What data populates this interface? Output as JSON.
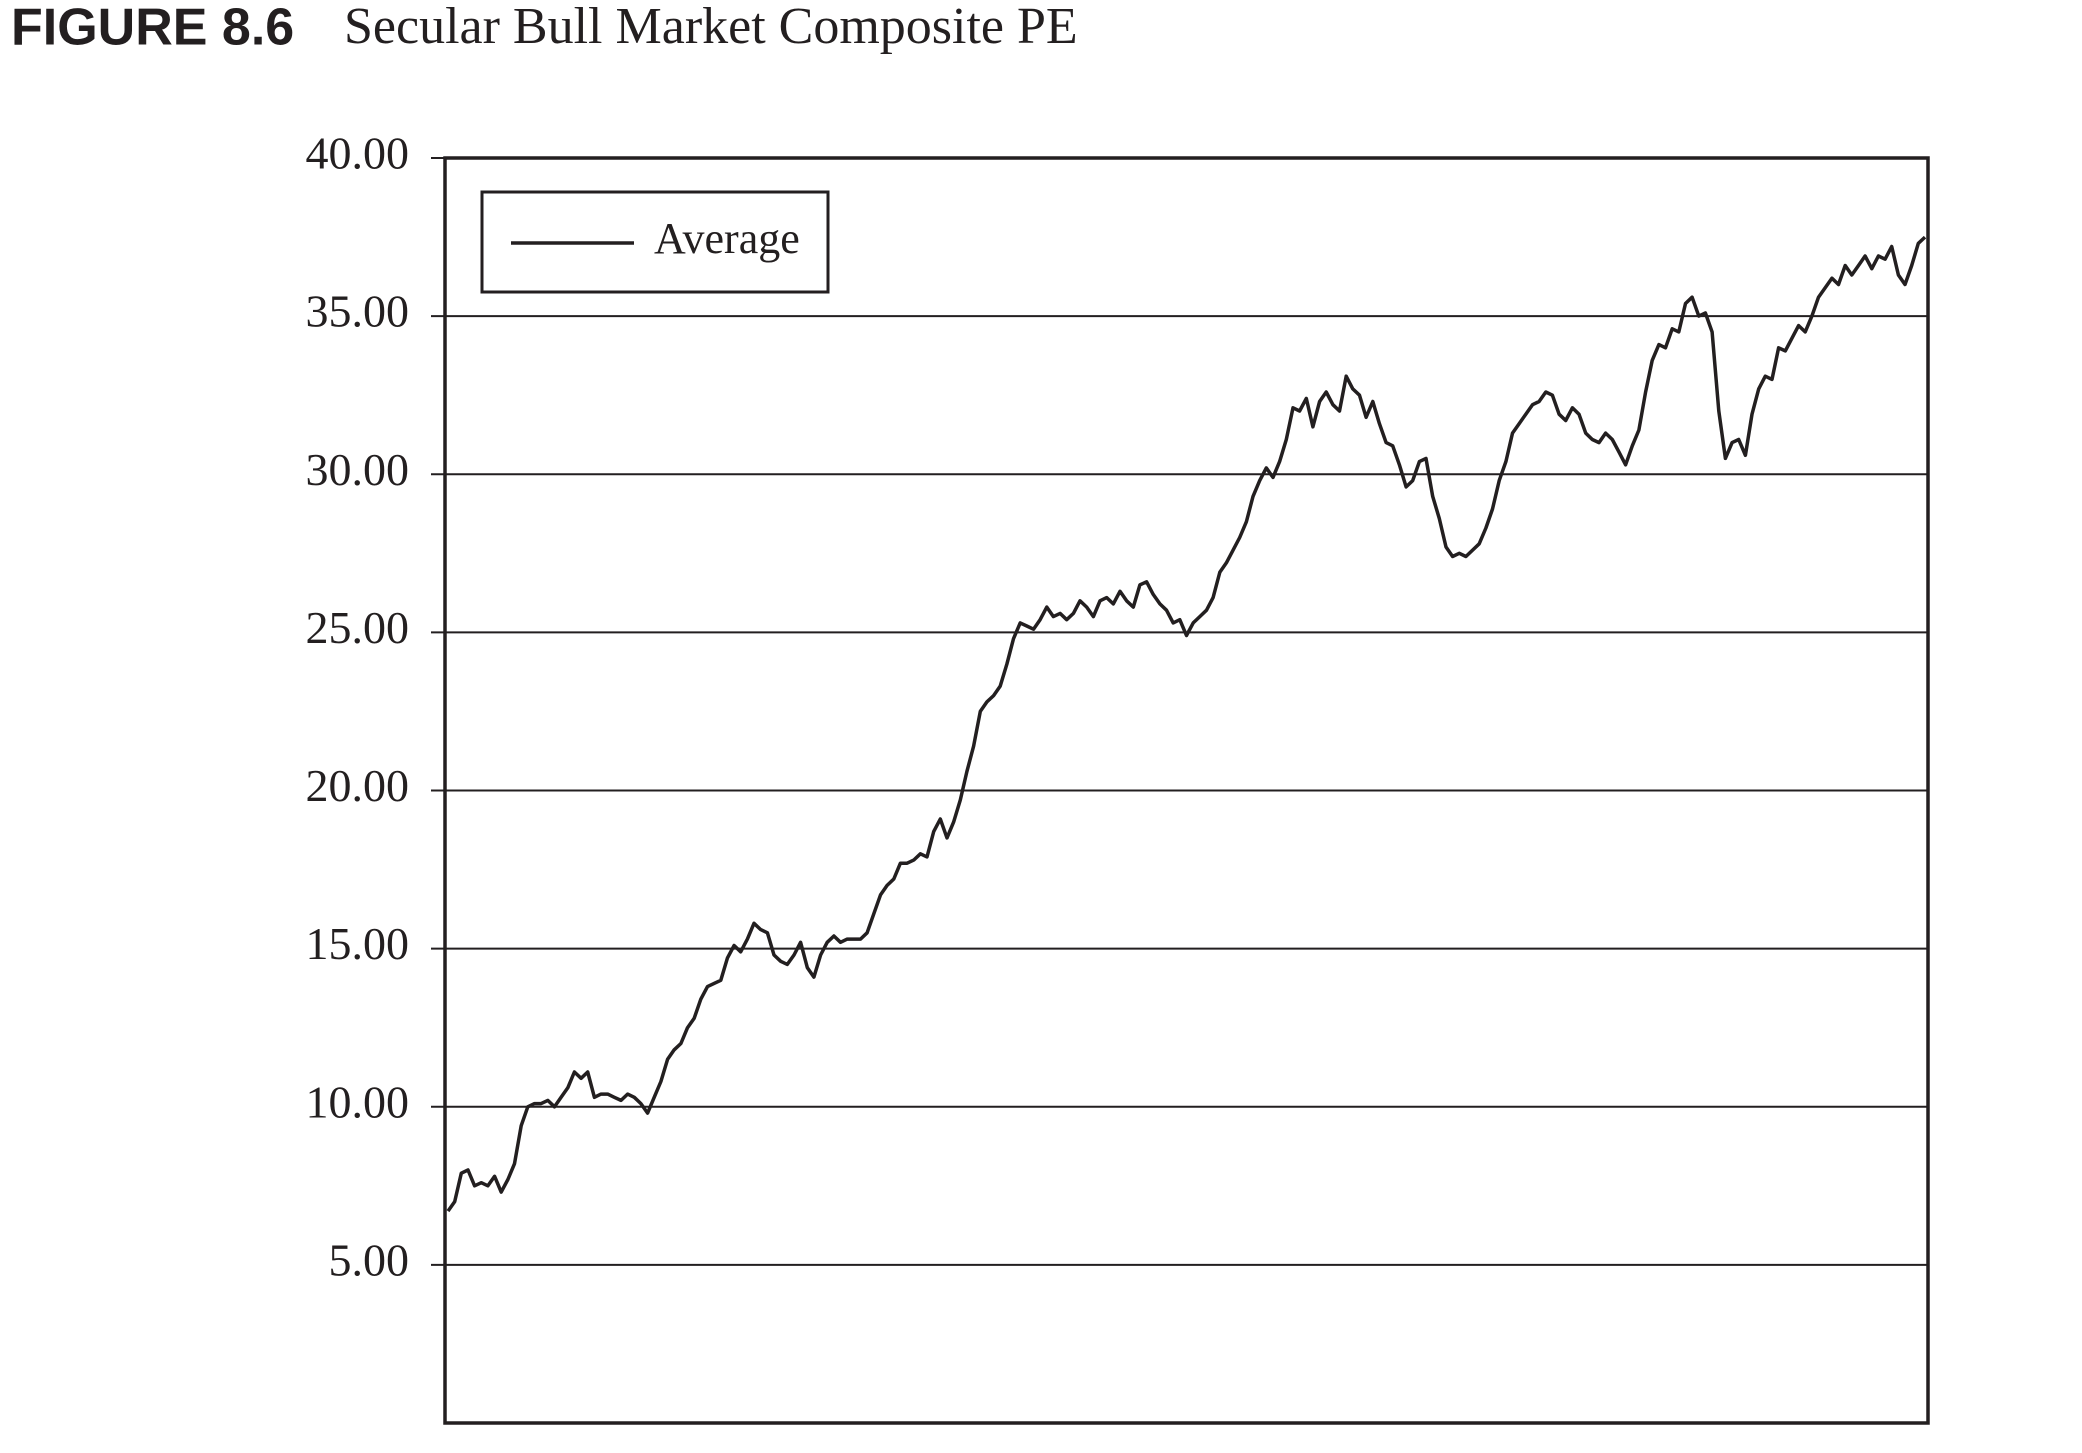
{
  "chart_data": {
    "type": "line",
    "figure_label": "FIGURE 8.6",
    "title": "Secular Bull Market Composite PE",
    "series": [
      {
        "name": "Average",
        "color": "#231f20",
        "values": [
          6.7,
          7.0,
          7.9,
          8.0,
          7.5,
          7.6,
          7.5,
          7.8,
          7.3,
          7.7,
          8.2,
          9.4,
          10.0,
          10.1,
          10.1,
          10.2,
          10.0,
          10.3,
          10.6,
          11.1,
          10.9,
          11.1,
          10.3,
          10.4,
          10.4,
          10.3,
          10.2,
          10.4,
          10.3,
          10.1,
          9.8,
          10.3,
          10.8,
          11.5,
          11.8,
          12.0,
          12.5,
          12.8,
          13.4,
          13.8,
          13.9,
          14.0,
          14.7,
          15.1,
          14.9,
          15.3,
          15.8,
          15.6,
          15.5,
          14.8,
          14.6,
          14.5,
          14.8,
          15.2,
          14.4,
          14.1,
          14.8,
          15.2,
          15.4,
          15.2,
          15.3,
          15.3,
          15.3,
          15.5,
          16.1,
          16.7,
          17.0,
          17.2,
          17.7,
          17.7,
          17.8,
          18.0,
          17.9,
          18.7,
          19.1,
          18.5,
          19.0,
          19.7,
          20.6,
          21.4,
          22.5,
          22.8,
          23.0,
          23.3,
          24.0,
          24.8,
          25.3,
          25.2,
          25.1,
          25.4,
          25.8,
          25.5,
          25.6,
          25.4,
          25.6,
          26.0,
          25.8,
          25.5,
          26.0,
          26.1,
          25.9,
          26.3,
          26.0,
          25.8,
          26.5,
          26.6,
          26.2,
          25.9,
          25.7,
          25.3,
          25.4,
          24.9,
          25.3,
          25.5,
          25.7,
          26.1,
          26.9,
          27.2,
          27.6,
          28.0,
          28.5,
          29.3,
          29.8,
          30.2,
          29.9,
          30.4,
          31.1,
          32.1,
          32.0,
          32.4,
          31.5,
          32.3,
          32.6,
          32.2,
          32.0,
          33.1,
          32.7,
          32.5,
          31.8,
          32.3,
          31.6,
          31.0,
          30.9,
          30.3,
          29.6,
          29.8,
          30.4,
          30.5,
          29.3,
          28.6,
          27.7,
          27.4,
          27.5,
          27.4,
          27.6,
          27.8,
          28.3,
          28.9,
          29.8,
          30.4,
          31.3,
          31.6,
          31.9,
          32.2,
          32.3,
          32.6,
          32.5,
          31.9,
          31.7,
          32.1,
          31.9,
          31.3,
          31.1,
          31.0,
          31.3,
          31.1,
          30.7,
          30.3,
          30.9,
          31.4,
          32.6,
          33.6,
          34.1,
          34.0,
          34.6,
          34.5,
          35.4,
          35.6,
          35.0,
          35.1,
          34.5,
          32.0,
          30.5,
          31.0,
          31.1,
          30.6,
          31.9,
          32.7,
          33.1,
          33.0,
          34.0,
          33.9,
          34.3,
          34.7,
          34.5,
          35.0,
          35.6,
          35.9,
          36.2,
          36.0,
          36.6,
          36.3,
          36.6,
          36.9,
          36.5,
          36.9,
          36.8,
          37.2,
          36.3,
          36.0,
          36.6,
          37.3,
          37.5
        ]
      }
    ],
    "ylim": [
      0,
      40
    ],
    "yticks": [
      {
        "value": 5,
        "label": "5.00"
      },
      {
        "value": 10,
        "label": "10.00"
      },
      {
        "value": 15,
        "label": "15.00"
      },
      {
        "value": 20,
        "label": "20.00"
      },
      {
        "value": 25,
        "label": "25.00"
      },
      {
        "value": 30,
        "label": "30.00"
      },
      {
        "value": 35,
        "label": "35.00"
      },
      {
        "value": 40,
        "label": "40.00"
      }
    ],
    "grid": true,
    "legend": "upper left"
  }
}
